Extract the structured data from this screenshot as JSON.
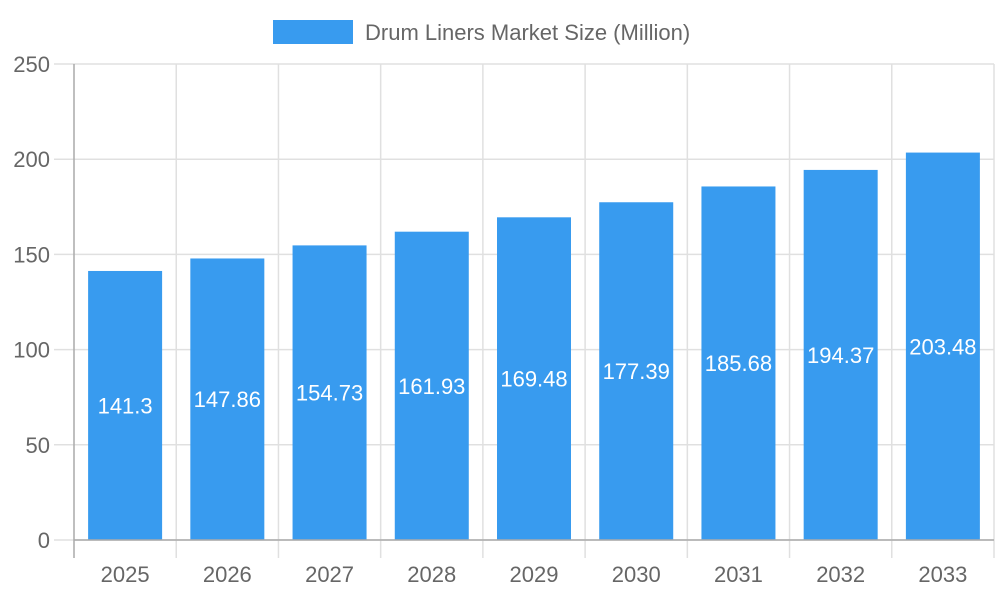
{
  "chart_data": {
    "type": "bar",
    "title": "",
    "xlabel": "",
    "ylabel": "",
    "categories": [
      "2025",
      "2026",
      "2027",
      "2028",
      "2029",
      "2030",
      "2031",
      "2032",
      "2033"
    ],
    "series": [
      {
        "name": "Drum Liners Market Size (Million)",
        "values": [
          141.3,
          147.86,
          154.73,
          161.93,
          169.48,
          177.39,
          185.68,
          194.37,
          203.48
        ],
        "color": "#389BEF"
      }
    ],
    "data_labels": [
      "141.3",
      "147.86",
      "154.73",
      "161.93",
      "169.48",
      "177.39",
      "185.68",
      "194.37",
      "203.48"
    ],
    "ylim": [
      0,
      250
    ],
    "yticks": [
      "0",
      "50",
      "100",
      "150",
      "200",
      "250"
    ],
    "grid": true,
    "legend_position": "top"
  }
}
